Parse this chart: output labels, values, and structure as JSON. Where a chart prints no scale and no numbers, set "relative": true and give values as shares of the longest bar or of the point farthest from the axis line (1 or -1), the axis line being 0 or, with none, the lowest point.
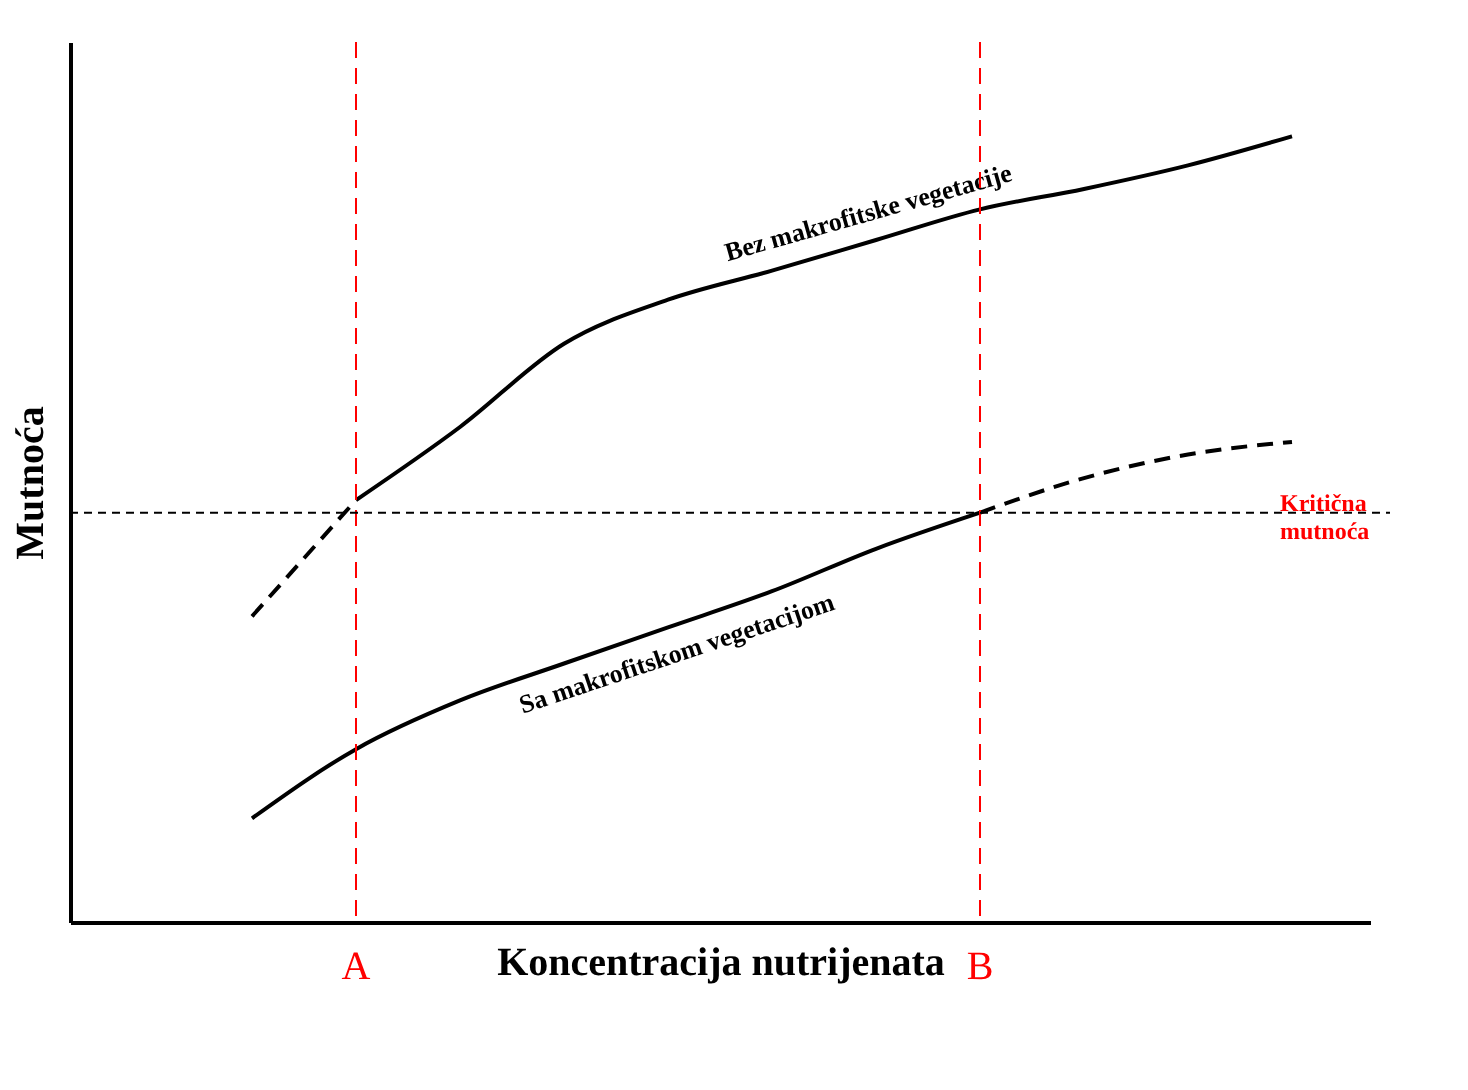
{
  "chart_data": {
    "type": "line",
    "relative": true,
    "xlabel": "Koncentracija nutrijenata",
    "ylabel": "Mutnoća",
    "tick_labels": "x",
    "grid": false,
    "marker": "none",
    "categories": [
      null,
      null,
      "A",
      null,
      null,
      null,
      null,
      null,
      "B",
      null,
      null,
      null
    ],
    "series": [
      {
        "color": "#000000",
        "line_style": "dashed",
        "values": [
          null,
          0.389,
          0.537,
          null,
          null,
          null,
          null,
          null,
          null,
          null,
          null,
          null
        ]
      },
      {
        "name": "Bez makrofitske vegetacije",
        "color": "#000000",
        "line_style": "solid",
        "values": [
          null,
          null,
          0.537,
          0.63,
          0.736,
          0.792,
          0.829,
          0.868,
          0.907,
          0.933,
          0.963,
          1.0
        ]
      },
      {
        "name": "Sa makrofitskom vegetacijom",
        "color": "#000000",
        "line_style": "solid",
        "values": [
          null,
          0.132,
          0.22,
          0.282,
          0.329,
          0.375,
          0.421,
          0.475,
          0.521,
          null,
          null,
          null
        ]
      },
      {
        "color": "#000000",
        "line_style": "dashed",
        "values": [
          null,
          null,
          null,
          null,
          null,
          null,
          null,
          null,
          0.521,
          0.565,
          0.595,
          0.611
        ]
      }
    ],
    "ref_lines": [
      {
        "axis": "x",
        "value": "A",
        "color": "#ff0000",
        "line_style": "dashed"
      },
      {
        "axis": "x",
        "value": "B",
        "color": "#ff0000",
        "line_style": "dashed"
      },
      {
        "axis": "y",
        "value": 0.521,
        "label": "Kritična mutnoća",
        "color": "#000000",
        "line_style": "dashed"
      }
    ]
  }
}
